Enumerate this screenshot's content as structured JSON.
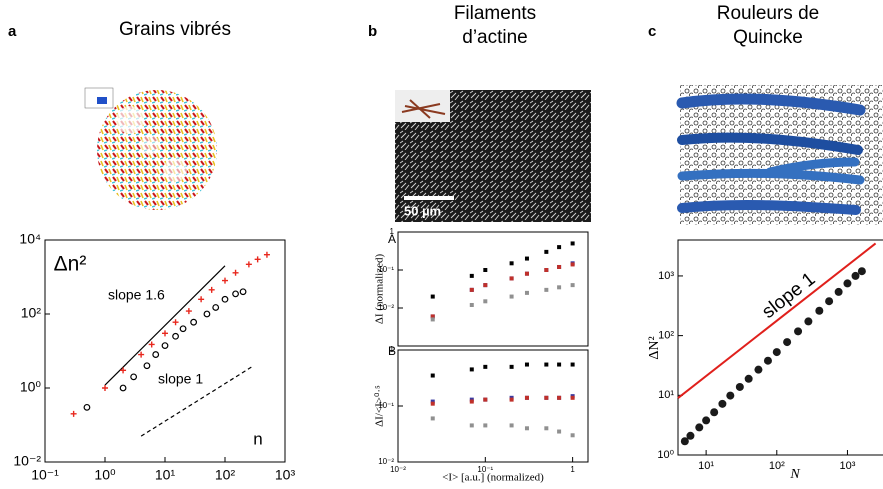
{
  "panels": [
    {
      "label": "a",
      "title": [
        "Grains vibrés"
      ]
    },
    {
      "label": "b",
      "title": [
        "Filaments",
        "d’actine"
      ],
      "scale_bar": "50 µm"
    },
    {
      "label": "c",
      "title": [
        "Rouleurs de",
        "Quincke"
      ]
    }
  ],
  "chart_data": [
    {
      "type": "scatter",
      "log": true,
      "xlabel": "n",
      "ylabel": "Δn²",
      "xlim": [
        0.1,
        1000
      ],
      "ylim": [
        0.01,
        10000
      ],
      "xticks": [
        {
          "value": 0.1,
          "label": "10⁻¹"
        },
        {
          "value": 1,
          "label": "10⁰"
        },
        {
          "value": 10,
          "label": "10¹"
        },
        {
          "value": 100,
          "label": "10²"
        },
        {
          "value": 1000,
          "label": "10³"
        }
      ],
      "yticks": [
        {
          "value": 0.01,
          "label": "10⁻²"
        },
        {
          "value": 1,
          "label": "10⁰"
        },
        {
          "value": 100,
          "label": "10²"
        },
        {
          "value": 10000,
          "label": "10⁴"
        }
      ],
      "series": [
        {
          "color": "#e8281e",
          "marker": "cross",
          "x": [
            0.3,
            1,
            2,
            4,
            6,
            10,
            15,
            25,
            40,
            60,
            100,
            150,
            250,
            350,
            500
          ],
          "values": [
            0.2,
            1,
            3,
            8,
            15,
            30,
            60,
            120,
            250,
            450,
            800,
            1300,
            2200,
            3000,
            4000
          ]
        },
        {
          "color": "#000000",
          "marker": "circle",
          "x": [
            0.5,
            2,
            3,
            5,
            7,
            10,
            15,
            20,
            30,
            50,
            70,
            100,
            150,
            200
          ],
          "values": [
            0.3,
            1,
            2,
            4,
            8,
            14,
            25,
            40,
            60,
            100,
            150,
            250,
            350,
            400
          ]
        }
      ],
      "lines": [
        {
          "color": "#000000",
          "dashed": false,
          "x": [
            1,
            100
          ],
          "values": [
            1.2,
            2000
          ]
        },
        {
          "color": "#000000",
          "dashed": true,
          "x": [
            4,
            300
          ],
          "values": [
            0.05,
            4
          ]
        }
      ],
      "annotations": [
        "slope 1.6",
        "slope 1"
      ]
    },
    {
      "type": "scatter",
      "log": true,
      "ylabel": "ΔI (normalized)",
      "panel_tag": "A",
      "xlim": [
        0.01,
        1.5
      ],
      "ylim": [
        0.001,
        1
      ],
      "xticks": [],
      "yticks": [
        {
          "value": 0.01,
          "label": "10⁻²"
        },
        {
          "value": 0.1,
          "label": "10⁻¹"
        },
        1
      ],
      "series": [
        {
          "color": "#000000",
          "marker": "square",
          "x": [
            0.025,
            0.07,
            0.1,
            0.2,
            0.3,
            0.5,
            0.7,
            1.0
          ],
          "values": [
            0.02,
            0.07,
            0.1,
            0.15,
            0.2,
            0.3,
            0.4,
            0.5
          ]
        },
        {
          "color": "#3a3aa0",
          "marker": "square",
          "x": [
            0.025,
            0.07,
            0.1,
            0.2,
            0.3,
            0.5,
            0.7,
            1.0
          ],
          "values": [
            0.006,
            0.03,
            0.04,
            0.06,
            0.08,
            0.1,
            0.12,
            0.15
          ]
        },
        {
          "color": "#c0302a",
          "marker": "square",
          "x": [
            0.025,
            0.07,
            0.1,
            0.2,
            0.3,
            0.5,
            0.7,
            1.0
          ],
          "values": [
            0.006,
            0.03,
            0.04,
            0.06,
            0.08,
            0.1,
            0.12,
            0.14
          ]
        },
        {
          "color": "#909090",
          "marker": "square",
          "x": [
            0.025,
            0.07,
            0.1,
            0.2,
            0.3,
            0.5,
            0.7,
            1.0
          ],
          "values": [
            0.005,
            0.012,
            0.015,
            0.02,
            0.025,
            0.03,
            0.035,
            0.04
          ]
        }
      ]
    },
    {
      "type": "scatter",
      "log": true,
      "ylabel": "ΔI/<I>⁰·⁵",
      "xlabel": "<I> [a.u.] (normalized)",
      "panel_tag": "B",
      "xlim": [
        0.01,
        1.5
      ],
      "ylim": [
        0.01,
        1
      ],
      "xticks": [
        {
          "value": 0.01,
          "label": "10⁻²"
        },
        {
          "value": 0.1,
          "label": "10⁻¹"
        },
        1
      ],
      "yticks": [
        {
          "value": 0.01,
          "label": "10⁻²"
        },
        {
          "value": 0.1,
          "label": "10⁻¹"
        },
        1
      ],
      "series": [
        {
          "color": "#000000",
          "marker": "square",
          "x": [
            0.025,
            0.07,
            0.1,
            0.2,
            0.3,
            0.5,
            0.7,
            1.0
          ],
          "values": [
            0.35,
            0.45,
            0.5,
            0.5,
            0.55,
            0.55,
            0.55,
            0.55
          ]
        },
        {
          "color": "#3a3aa0",
          "marker": "square",
          "x": [
            0.025,
            0.07,
            0.1,
            0.2,
            0.3,
            0.5,
            0.7,
            1.0
          ],
          "values": [
            0.12,
            0.13,
            0.13,
            0.14,
            0.14,
            0.14,
            0.14,
            0.15
          ]
        },
        {
          "color": "#c0302a",
          "marker": "square",
          "x": [
            0.025,
            0.07,
            0.1,
            0.2,
            0.3,
            0.5,
            0.7,
            1.0
          ],
          "values": [
            0.11,
            0.12,
            0.13,
            0.13,
            0.14,
            0.14,
            0.14,
            0.14
          ]
        },
        {
          "color": "#909090",
          "marker": "square",
          "x": [
            0.025,
            0.07,
            0.1,
            0.2,
            0.3,
            0.5,
            0.7,
            1.0
          ],
          "values": [
            0.06,
            0.045,
            0.045,
            0.045,
            0.04,
            0.04,
            0.035,
            0.03
          ]
        }
      ]
    },
    {
      "type": "scatter",
      "log": true,
      "xlabel": "N",
      "ylabel": "ΔN²",
      "xlim": [
        4,
        4000
      ],
      "ylim": [
        1,
        4000
      ],
      "xticks": [
        {
          "value": 10,
          "label": "10¹"
        },
        {
          "value": 100,
          "label": "10²"
        },
        {
          "value": 1000,
          "label": "10³"
        }
      ],
      "yticks": [
        {
          "value": 1,
          "label": "10⁰"
        },
        {
          "value": 10,
          "label": "10¹"
        },
        {
          "value": 100,
          "label": "10²"
        },
        {
          "value": 1000,
          "label": "10³"
        }
      ],
      "series": [
        {
          "color": "#1a1a1a",
          "marker": "dot",
          "x": [
            5,
            6,
            8,
            10,
            13,
            17,
            22,
            30,
            40,
            55,
            75,
            100,
            140,
            200,
            280,
            400,
            550,
            750,
            1000,
            1300,
            1600
          ],
          "values": [
            1.7,
            2.1,
            2.9,
            3.8,
            5.2,
            7.2,
            9.9,
            13.8,
            18.9,
            26.9,
            38,
            53,
            78,
            118,
            173,
            261,
            377,
            540,
            750,
            1000,
            1200
          ]
        }
      ],
      "lines": [
        {
          "color": "#e0201c",
          "dashed": false,
          "x": [
            4,
            2500
          ],
          "values": [
            9,
            3500
          ]
        }
      ],
      "annotations": [
        "slope 1"
      ]
    }
  ]
}
